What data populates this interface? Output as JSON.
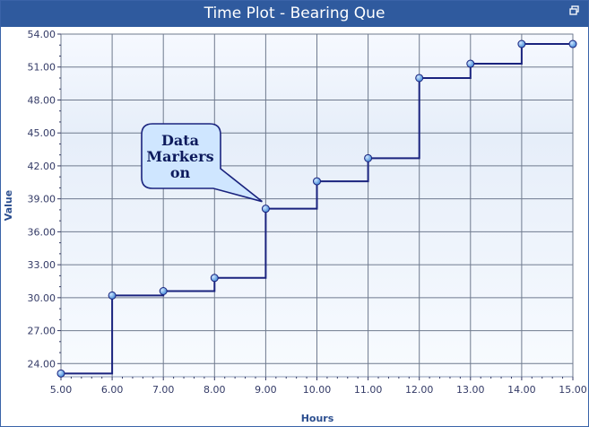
{
  "window": {
    "title": "Time Plot - Bearing Que",
    "restore_icon": "restore-icon"
  },
  "chart_data": {
    "type": "line",
    "step": true,
    "markers": true,
    "x": [
      5,
      6,
      7,
      8,
      9,
      10,
      11,
      12,
      13,
      14,
      15
    ],
    "y": [
      23.1,
      30.2,
      30.6,
      31.8,
      38.1,
      40.6,
      42.7,
      50.0,
      51.3,
      53.1,
      53.1
    ],
    "xlabel": "Hours",
    "ylabel": "Value",
    "xlim": [
      5,
      15
    ],
    "ylim": [
      22.8,
      54
    ],
    "xticks": [
      "5.00",
      "6.00",
      "7.00",
      "8.00",
      "9.00",
      "10.00",
      "11.00",
      "12.00",
      "13.00",
      "14.00",
      "15.00"
    ],
    "yticks": [
      "24.00",
      "27.00",
      "30.00",
      "33.00",
      "36.00",
      "39.00",
      "42.00",
      "45.00",
      "48.00",
      "51.00",
      "54.00"
    ],
    "grid": true,
    "line_color": "#1a237e",
    "marker_color": "#5aa0e6",
    "annotation": {
      "lines": [
        "Data",
        "Markers",
        "on"
      ],
      "points_to_x": 9,
      "points_to_y": 38.1
    }
  }
}
